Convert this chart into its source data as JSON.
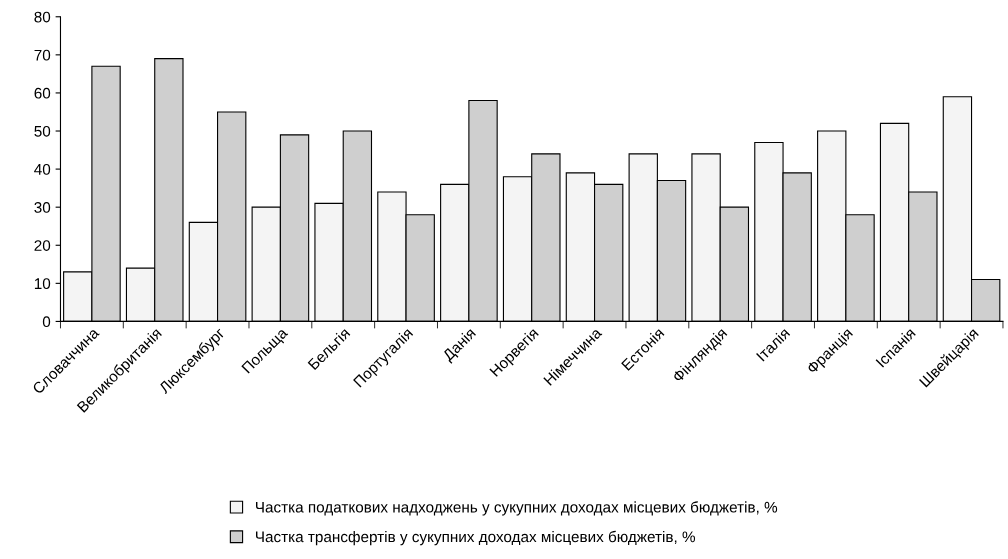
{
  "chart_data": {
    "type": "bar",
    "categories": [
      "Словаччина",
      "Великобританія",
      "Люксембург",
      "Польща",
      "Бельгія",
      "Португалія",
      "Данія",
      "Норвегія",
      "Німеччина",
      "Естонія",
      "Фінляндія",
      "Італія",
      "Франція",
      "Іспанія",
      "Швейцарія"
    ],
    "series": [
      {
        "name": "Частка податкових надходжень у сукупних доходах місцевих бюджетів, %",
        "color": "#f4f4f4",
        "values": [
          13,
          14,
          26,
          30,
          31,
          34,
          36,
          38,
          39,
          44,
          44,
          47,
          50,
          52,
          59
        ]
      },
      {
        "name": "Частка трансфертів у сукупних доходах місцевих бюджетів, %",
        "color": "#cfcfcf",
        "values": [
          67,
          69,
          55,
          49,
          50,
          28,
          58,
          44,
          36,
          37,
          30,
          39,
          28,
          34,
          11
        ]
      }
    ],
    "ylim": [
      0,
      80
    ],
    "yticks": [
      0,
      10,
      20,
      30,
      40,
      50,
      60,
      70,
      80
    ],
    "grid": false,
    "legend": "bottom"
  }
}
